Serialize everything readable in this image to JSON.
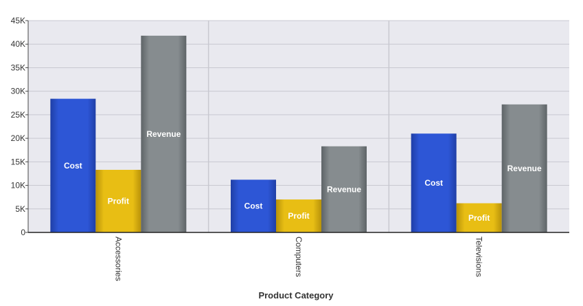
{
  "chart_data": {
    "type": "bar",
    "title": "",
    "xlabel": "Product Category",
    "ylabel": "",
    "categories": [
      "Accessories",
      "Computers",
      "Televisions"
    ],
    "series": [
      {
        "name": "Cost",
        "color": "#2d56d6",
        "values": [
          28400,
          11200,
          21000
        ]
      },
      {
        "name": "Profit",
        "color": "#e8be14",
        "values": [
          13300,
          7000,
          6200
        ]
      },
      {
        "name": "Revenue",
        "color": "#868c8f",
        "values": [
          41800,
          18300,
          27200
        ]
      }
    ],
    "ylim": [
      0,
      45000
    ],
    "yticks": [
      0,
      5000,
      10000,
      15000,
      20000,
      25000,
      30000,
      35000,
      40000,
      45000
    ],
    "ytick_labels": [
      "0",
      "5K",
      "10K",
      "15K",
      "20K",
      "25K",
      "30K",
      "35K",
      "40K",
      "45K"
    ],
    "grid": true,
    "legend": "none",
    "background_color": "#e9e9ef",
    "grid_color": "#c8c8d0"
  }
}
